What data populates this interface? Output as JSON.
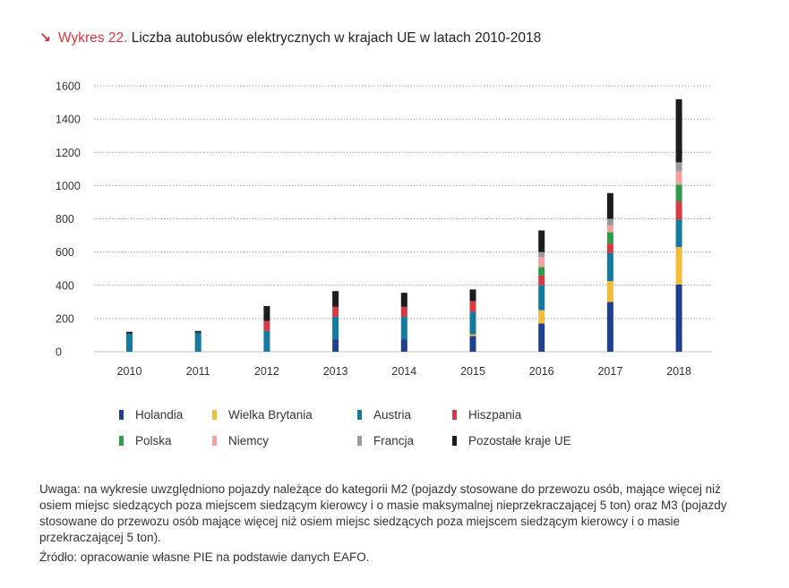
{
  "title": {
    "arrow": "↘",
    "prefix": "Wykres 22.",
    "text": "Liczba autobusów elektrycznych w krajach UE w latach 2010-2018"
  },
  "chart_data": {
    "type": "bar",
    "stacked": true,
    "categories": [
      "2010",
      "2011",
      "2012",
      "2013",
      "2014",
      "2015",
      "2016",
      "2017",
      "2018"
    ],
    "yticks": [
      "0",
      "200",
      "400",
      "600",
      "800",
      "1000",
      "1200",
      "1400",
      "1600"
    ],
    "ylim": [
      0,
      1600
    ],
    "grid": true,
    "legend_position": "bottom",
    "series": [
      {
        "name": "Holandia",
        "color": "#1f3f8f",
        "values": [
          0,
          0,
          0,
          75,
          75,
          95,
          170,
          300,
          405
        ]
      },
      {
        "name": "Wielka Brytania",
        "color": "#f2bc3b",
        "values": [
          0,
          0,
          0,
          0,
          0,
          10,
          80,
          125,
          225
        ]
      },
      {
        "name": "Austria",
        "color": "#16799e",
        "values": [
          110,
          115,
          125,
          135,
          135,
          135,
          150,
          170,
          165
        ]
      },
      {
        "name": "Hiszpania",
        "color": "#d63a45",
        "values": [
          0,
          0,
          60,
          60,
          60,
          65,
          60,
          55,
          110
        ]
      },
      {
        "name": "Polska",
        "color": "#2f9b48",
        "values": [
          0,
          0,
          0,
          0,
          0,
          0,
          50,
          70,
          100
        ]
      },
      {
        "name": "Niemcy",
        "color": "#f2a1a0",
        "values": [
          0,
          0,
          0,
          0,
          0,
          0,
          60,
          40,
          80
        ]
      },
      {
        "name": "Francja",
        "color": "#9a9a9a",
        "values": [
          0,
          0,
          0,
          0,
          0,
          0,
          30,
          40,
          55
        ]
      },
      {
        "name": "Pozostałe kraje UE",
        "color": "#1c1c1c",
        "values": [
          10,
          10,
          90,
          95,
          85,
          70,
          130,
          155,
          380
        ]
      }
    ]
  },
  "note": "Uwaga: na wykresie uwzględniono pojazdy należące do kategorii M2 (pojazdy stosowane do przewozu osób, mające więcej niż osiem miejsc siedzących poza miejscem siedzącym kierowcy i o masie maksymalnej nieprzekraczającej 5 ton) oraz M3 (pojazdy stosowane do przewozu osób mające więcej niż osiem miejsc siedzących poza miejscem siedzącym kierowcy i o masie przekraczającej 5 ton).",
  "source": "Źródło: opracowanie własne PIE na podstawie danych EAFO."
}
